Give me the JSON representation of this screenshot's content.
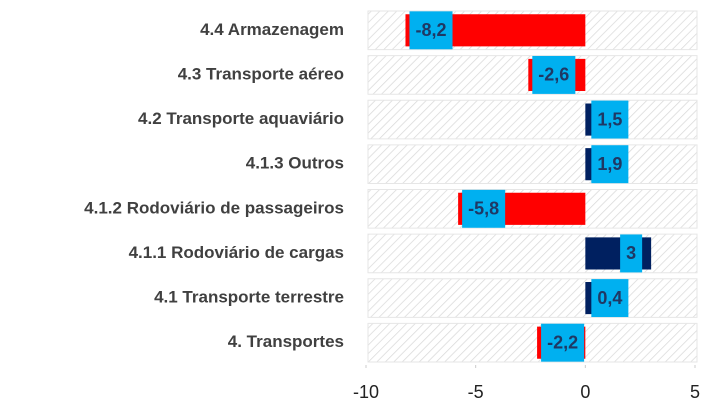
{
  "chart_data": {
    "type": "bar",
    "orientation": "horizontal",
    "categories": [
      "4.4 Armazenagem",
      "4.3 Transporte aéreo",
      "4.2 Transporte aquaviário",
      "4.1.3 Outros",
      "4.1.2 Rodoviário de passageiros",
      "4.1.1 Rodoviário de cargas",
      "4.1 Transporte terrestre",
      "4. Transportes"
    ],
    "values": [
      -8.2,
      -2.6,
      1.5,
      1.9,
      -5.8,
      3,
      0.4,
      -2.2
    ],
    "value_labels": [
      "-8,2",
      "-2,6",
      "1,5",
      "1,9",
      "-5,8",
      "3",
      "0,4",
      "-2,2"
    ],
    "colors": {
      "positive": "#002060",
      "negative": "#ff0000",
      "label_box": "#00b0f0"
    },
    "xlim": [
      -10,
      5
    ],
    "xticks": [
      -10,
      -5,
      0,
      5
    ]
  }
}
